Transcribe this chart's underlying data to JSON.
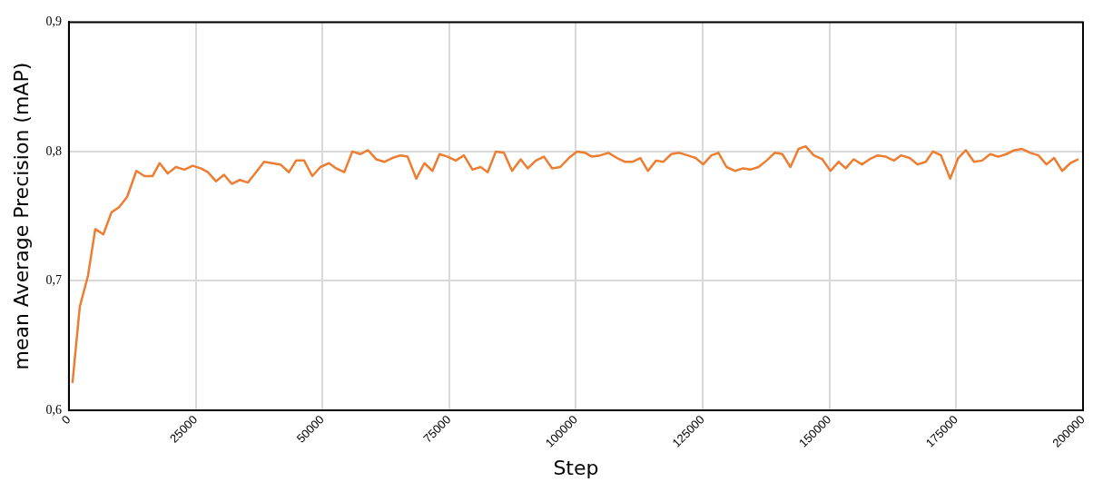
{
  "chart_data": {
    "type": "line",
    "xlabel": "Step",
    "ylabel": "mean Average Precision (mAP)",
    "x": [
      700,
      2150,
      3760,
      5200,
      6800,
      8400,
      9900,
      11500,
      13300,
      14900,
      16500,
      17900,
      19500,
      21100,
      22800,
      24400,
      26000,
      27400,
      29000,
      30600,
      32100,
      33700,
      35300,
      36900,
      38500,
      41700,
      43400,
      44800,
      46400,
      48000,
      49600,
      51300,
      52700,
      54300,
      55900,
      57500,
      59000,
      60600,
      62200,
      63800,
      65400,
      66800,
      68500,
      70100,
      71700,
      73100,
      74700,
      76300,
      77900,
      79600,
      81200,
      82600,
      84200,
      85800,
      87400,
      89100,
      90500,
      92100,
      93700,
      95300,
      96900,
      98600,
      100200,
      101800,
      103200,
      104800,
      106400,
      108100,
      109700,
      111100,
      112700,
      114200,
      115800,
      117200,
      118800,
      120400,
      122000,
      123600,
      125100,
      126700,
      128100,
      129700,
      131400,
      133000,
      134400,
      136000,
      137600,
      139200,
      140700,
      142300,
      143900,
      145300,
      146900,
      148600,
      150200,
      151800,
      153200,
      154800,
      156400,
      157900,
      159500,
      161100,
      162700,
      164100,
      165800,
      167400,
      169000,
      170400,
      172000,
      173800,
      175400,
      176900,
      178500,
      180100,
      181700,
      183300,
      184900,
      186500,
      188000,
      189600,
      191200,
      192800,
      194300,
      195900,
      197500,
      199100
    ],
    "series": [
      {
        "color": "#ed7d31",
        "values": [
          0.621,
          0.68,
          0.704,
          0.74,
          0.736,
          0.753,
          0.757,
          0.765,
          0.785,
          0.781,
          0.781,
          0.791,
          0.783,
          0.788,
          0.786,
          0.789,
          0.787,
          0.784,
          0.777,
          0.782,
          0.775,
          0.778,
          0.776,
          0.784,
          0.792,
          0.79,
          0.784,
          0.793,
          0.793,
          0.781,
          0.788,
          0.791,
          0.787,
          0.784,
          0.8,
          0.798,
          0.801,
          0.794,
          0.792,
          0.795,
          0.797,
          0.796,
          0.779,
          0.791,
          0.785,
          0.798,
          0.796,
          0.793,
          0.797,
          0.786,
          0.788,
          0.784,
          0.8,
          0.799,
          0.785,
          0.794,
          0.787,
          0.793,
          0.796,
          0.787,
          0.788,
          0.795,
          0.8,
          0.799,
          0.796,
          0.797,
          0.799,
          0.795,
          0.792,
          0.792,
          0.795,
          0.785,
          0.793,
          0.792,
          0.798,
          0.799,
          0.797,
          0.795,
          0.79,
          0.797,
          0.799,
          0.788,
          0.785,
          0.787,
          0.786,
          0.788,
          0.793,
          0.799,
          0.798,
          0.788,
          0.802,
          0.804,
          0.797,
          0.794,
          0.785,
          0.792,
          0.787,
          0.794,
          0.79,
          0.794,
          0.797,
          0.796,
          0.793,
          0.797,
          0.795,
          0.79,
          0.792,
          0.8,
          0.797,
          0.779,
          0.795,
          0.801,
          0.792,
          0.793,
          0.798,
          0.796,
          0.798,
          0.801,
          0.802,
          0.799,
          0.797,
          0.79,
          0.795,
          0.785,
          0.791,
          0.794
        ]
      }
    ],
    "xlim": [
      0,
      200000
    ],
    "xticks": [
      0,
      25000,
      50000,
      75000,
      100000,
      125000,
      150000,
      175000,
      200000
    ],
    "ylim": [
      0.6,
      0.9
    ],
    "yticks": [
      {
        "value": 0.6,
        "label": "0,6"
      },
      {
        "value": 0.7,
        "label": "0,7"
      },
      {
        "value": 0.8,
        "label": "0,8"
      },
      {
        "value": 0.9,
        "label": "0,9"
      }
    ],
    "grid": true,
    "legend": false,
    "marker": "none",
    "line_style": "solid"
  }
}
